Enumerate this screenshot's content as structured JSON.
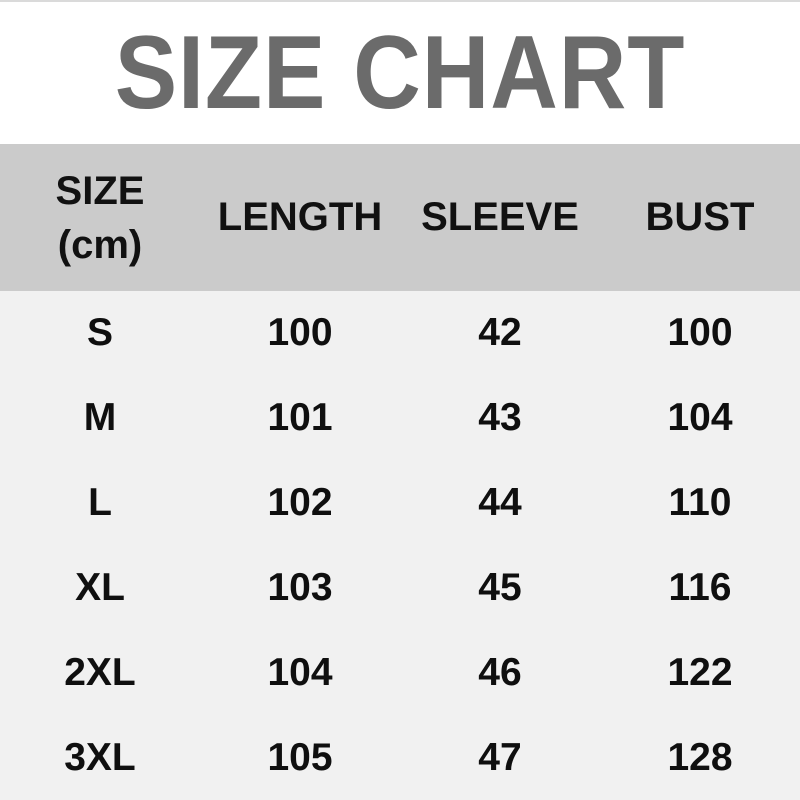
{
  "title": "SIZE CHART",
  "header": {
    "size": "SIZE",
    "unit": "(cm)",
    "length": "LENGTH",
    "sleeve": "SLEEVE",
    "bust": "BUST"
  },
  "colors": {
    "title_text": "#6b6b6b",
    "title_background": "#ffffff",
    "header_background": "#cbcbcb",
    "body_background": "#f1f1f1",
    "cell_text": "#111111",
    "top_line": "#dadada"
  },
  "chart_data": {
    "type": "table",
    "title": "SIZE CHART",
    "unit": "cm",
    "columns": [
      "SIZE (cm)",
      "LENGTH",
      "SLEEVE",
      "BUST"
    ],
    "rows": [
      [
        "S",
        100,
        42,
        100
      ],
      [
        "M",
        101,
        43,
        104
      ],
      [
        "L",
        102,
        44,
        110
      ],
      [
        "XL",
        103,
        45,
        116
      ],
      [
        "2XL",
        104,
        46,
        122
      ],
      [
        "3XL",
        105,
        47,
        128
      ]
    ]
  }
}
